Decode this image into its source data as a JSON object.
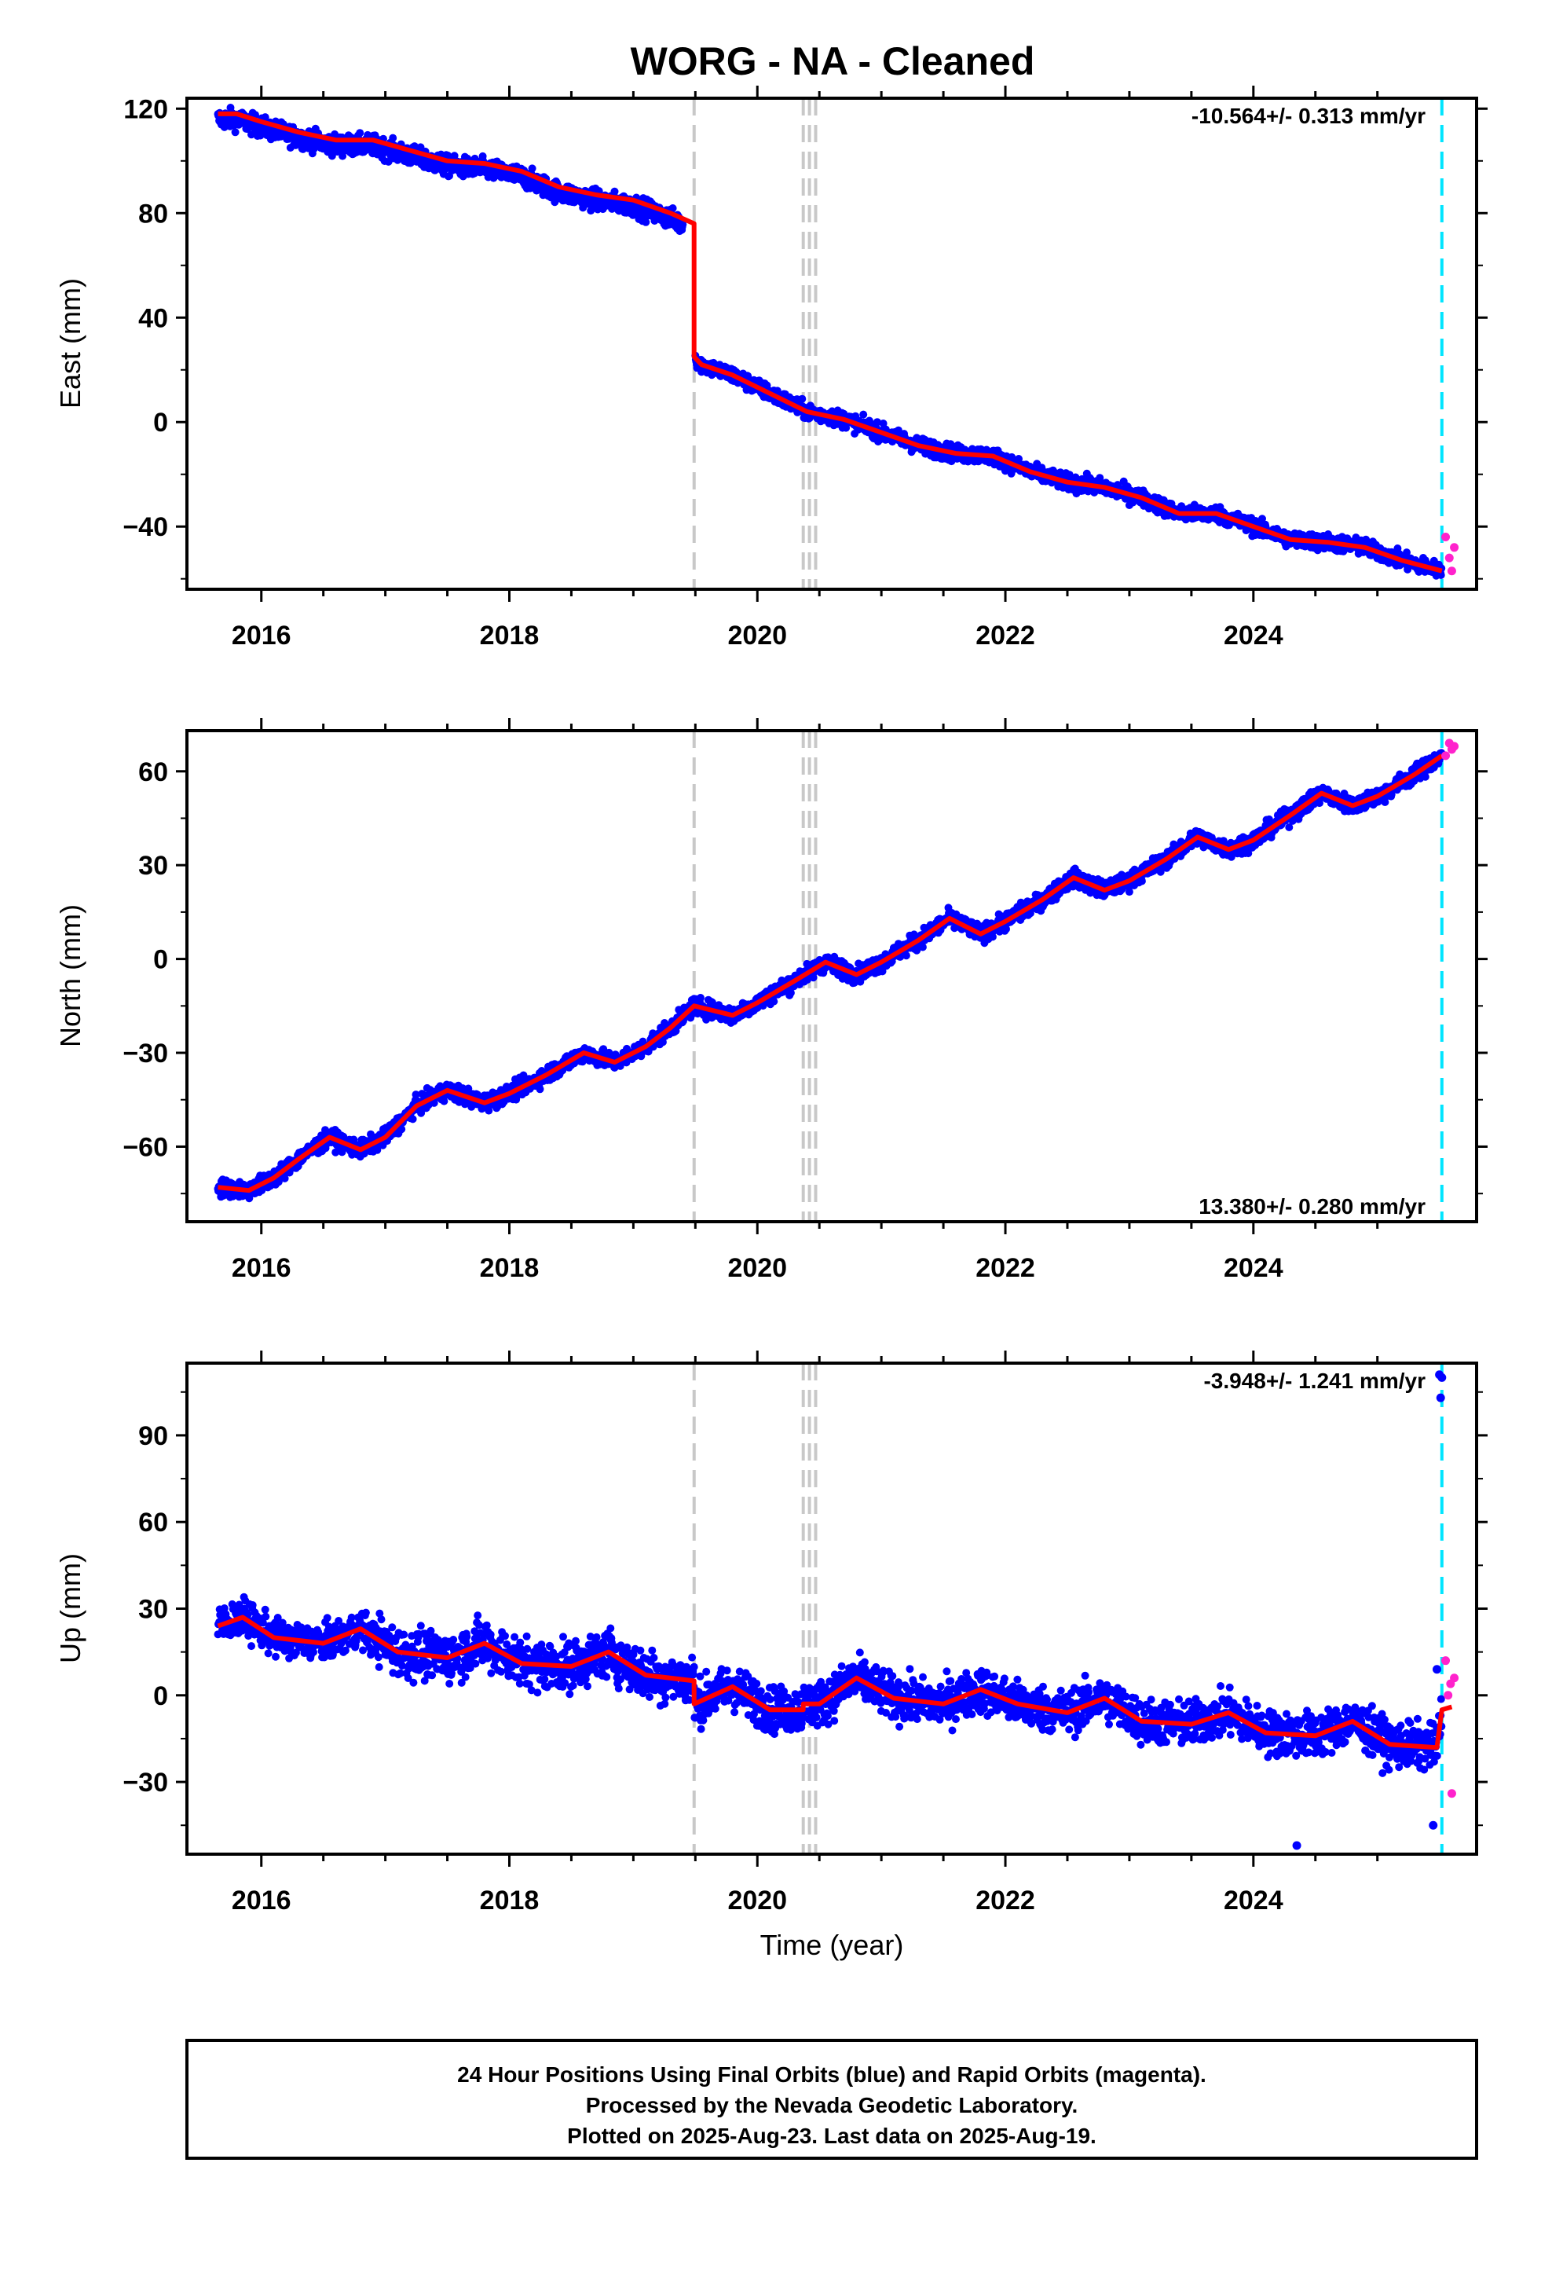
{
  "title": "WORG  - NA - Cleaned",
  "xlabel": "Time (year)",
  "footer": [
    "24 Hour Positions Using Final Orbits (blue) and Rapid Orbits (magenta).",
    "Processed by the Nevada Geodetic Laboratory.",
    "Plotted on 2025-Aug-23. Last data on 2025-Aug-19."
  ],
  "colors": {
    "final_orbits": "#0000ff",
    "rapid_orbits": "#ff22cc",
    "model": "#ff0000",
    "steps": "#c8c8c8",
    "last_epoch": "#00e5ff"
  },
  "step_epochs": [
    2019.49,
    2020.37,
    2020.42,
    2020.47
  ],
  "last_epoch": 2025.52,
  "chart_data": [
    {
      "type": "scatter",
      "component": "East",
      "ylabel": "East (mm)",
      "rate_label": "-10.564+/- 0.313 mm/yr",
      "rate_position": "top-right",
      "xlim": [
        2015.4,
        2025.8
      ],
      "ylim": [
        -64,
        124
      ],
      "xticks": [
        "2016",
        "2018",
        "2020",
        "2022",
        "2024"
      ],
      "yticks": [
        "120",
        "80",
        "40",
        "0",
        "−40"
      ],
      "ytick_values": [
        120,
        80,
        40,
        0,
        -40
      ],
      "model": {
        "x": [
          2015.65,
          2015.8,
          2016.0,
          2016.3,
          2016.6,
          2016.9,
          2017.2,
          2017.5,
          2017.8,
          2018.1,
          2018.4,
          2018.7,
          2019.0,
          2019.3,
          2019.49,
          2019.49,
          2019.55,
          2019.8,
          2020.1,
          2020.4,
          2020.7,
          2021.0,
          2021.3,
          2021.6,
          2021.9,
          2022.2,
          2022.5,
          2022.8,
          2023.1,
          2023.4,
          2023.7,
          2024.0,
          2024.3,
          2024.6,
          2024.9,
          2025.2,
          2025.52
        ],
        "y": [
          118,
          118,
          115,
          111,
          108,
          108,
          104,
          100,
          99,
          96,
          90,
          87,
          85,
          80,
          76,
          25,
          22,
          18,
          11,
          4,
          1,
          -4,
          -9,
          -12,
          -13,
          -19,
          -23,
          -25,
          -29,
          -35,
          -35,
          -40,
          -45,
          -46,
          -48,
          -53,
          -57
        ]
      },
      "points": {
        "segments": [
          {
            "x": [
              2015.65,
              2019.4
            ],
            "spread": 5
          },
          {
            "x": [
              2019.5,
              2025.52
            ],
            "spread": 4
          }
        ]
      },
      "rapid": {
        "x": [
          2025.55,
          2025.58,
          2025.6,
          2025.62
        ],
        "y": [
          -44,
          -52,
          -57,
          -48
        ]
      }
    },
    {
      "type": "scatter",
      "component": "North",
      "ylabel": "North (mm)",
      "rate_label": "13.380+/- 0.280 mm/yr",
      "rate_position": "bottom-right",
      "xlim": [
        2015.4,
        2025.8
      ],
      "ylim": [
        -84,
        73
      ],
      "xticks": [
        "2016",
        "2018",
        "2020",
        "2022",
        "2024"
      ],
      "yticks": [
        "60",
        "30",
        "0",
        "−30",
        "−60"
      ],
      "ytick_values": [
        60,
        30,
        0,
        -30,
        -60
      ],
      "model": {
        "x": [
          2015.65,
          2015.9,
          2016.1,
          2016.3,
          2016.55,
          2016.8,
          2017.0,
          2017.25,
          2017.5,
          2017.8,
          2018.0,
          2018.3,
          2018.6,
          2018.85,
          2019.1,
          2019.3,
          2019.49,
          2019.8,
          2020.0,
          2020.3,
          2020.55,
          2020.8,
          2021.0,
          2021.3,
          2021.55,
          2021.8,
          2022.0,
          2022.3,
          2022.55,
          2022.8,
          2023.0,
          2023.3,
          2023.55,
          2023.8,
          2024.0,
          2024.3,
          2024.55,
          2024.8,
          2025.0,
          2025.3,
          2025.52
        ],
        "y": [
          -73,
          -74,
          -70,
          -64,
          -57,
          -61,
          -57,
          -47,
          -42,
          -46,
          -43,
          -37,
          -30,
          -33,
          -28,
          -22,
          -15,
          -18,
          -14,
          -7,
          -1,
          -5,
          -1,
          6,
          13,
          8,
          12,
          19,
          26,
          22,
          25,
          32,
          39,
          35,
          38,
          46,
          53,
          49,
          52,
          59,
          65
        ]
      },
      "points": {
        "segments": [
          {
            "x": [
              2015.65,
              2025.52
            ],
            "spread": 3.5
          }
        ]
      },
      "rapid": {
        "x": [
          2025.55,
          2025.58,
          2025.6,
          2025.62
        ],
        "y": [
          65,
          69,
          67,
          68
        ]
      }
    },
    {
      "type": "scatter",
      "component": "Up",
      "ylabel": "Up (mm)",
      "rate_label": "-3.948+/- 1.241 mm/yr",
      "rate_position": "top-right",
      "xlim": [
        2015.4,
        2025.8
      ],
      "ylim": [
        -55,
        115
      ],
      "xticks": [
        "2016",
        "2018",
        "2020",
        "2022",
        "2024"
      ],
      "yticks": [
        "90",
        "60",
        "30",
        "0",
        "−30"
      ],
      "ytick_values": [
        90,
        60,
        30,
        0,
        -30
      ],
      "model": {
        "x": [
          2015.65,
          2015.85,
          2016.1,
          2016.5,
          2016.8,
          2017.1,
          2017.5,
          2017.8,
          2018.1,
          2018.5,
          2018.8,
          2019.1,
          2019.49,
          2019.49,
          2019.8,
          2020.1,
          2020.37,
          2020.37,
          2020.5,
          2020.8,
          2021.1,
          2021.5,
          2021.8,
          2022.1,
          2022.5,
          2022.8,
          2023.1,
          2023.5,
          2023.8,
          2024.1,
          2024.5,
          2024.8,
          2025.1,
          2025.45,
          2025.48,
          2025.52,
          2025.6
        ],
        "y": [
          24,
          27,
          20,
          18,
          23,
          15,
          13,
          18,
          11,
          10,
          15,
          7,
          5,
          -3,
          3,
          -5,
          -5,
          -3,
          -3,
          6,
          -1,
          -3,
          2,
          -3,
          -6,
          -1,
          -9,
          -10,
          -6,
          -13,
          -14,
          -9,
          -17,
          -18,
          -18,
          -5,
          -4
        ]
      },
      "points": {
        "segments": [
          {
            "x": [
              2015.65,
              2016.95
            ],
            "spread": 8
          },
          {
            "x": [
              2016.95,
              2019.49
            ],
            "spread": 11
          },
          {
            "x": [
              2019.49,
              2025.52
            ],
            "spread": 10
          }
        ]
      },
      "outliers": {
        "x": [
          2024.35,
          2025.45,
          2025.48,
          2025.5,
          2025.51,
          2025.52
        ],
        "y": [
          -52,
          -45,
          9,
          111,
          103,
          110
        ]
      },
      "rapid": {
        "x": [
          2025.55,
          2025.57,
          2025.59,
          2025.6,
          2025.62
        ],
        "y": [
          12,
          0,
          4,
          -34,
          6
        ]
      }
    }
  ]
}
